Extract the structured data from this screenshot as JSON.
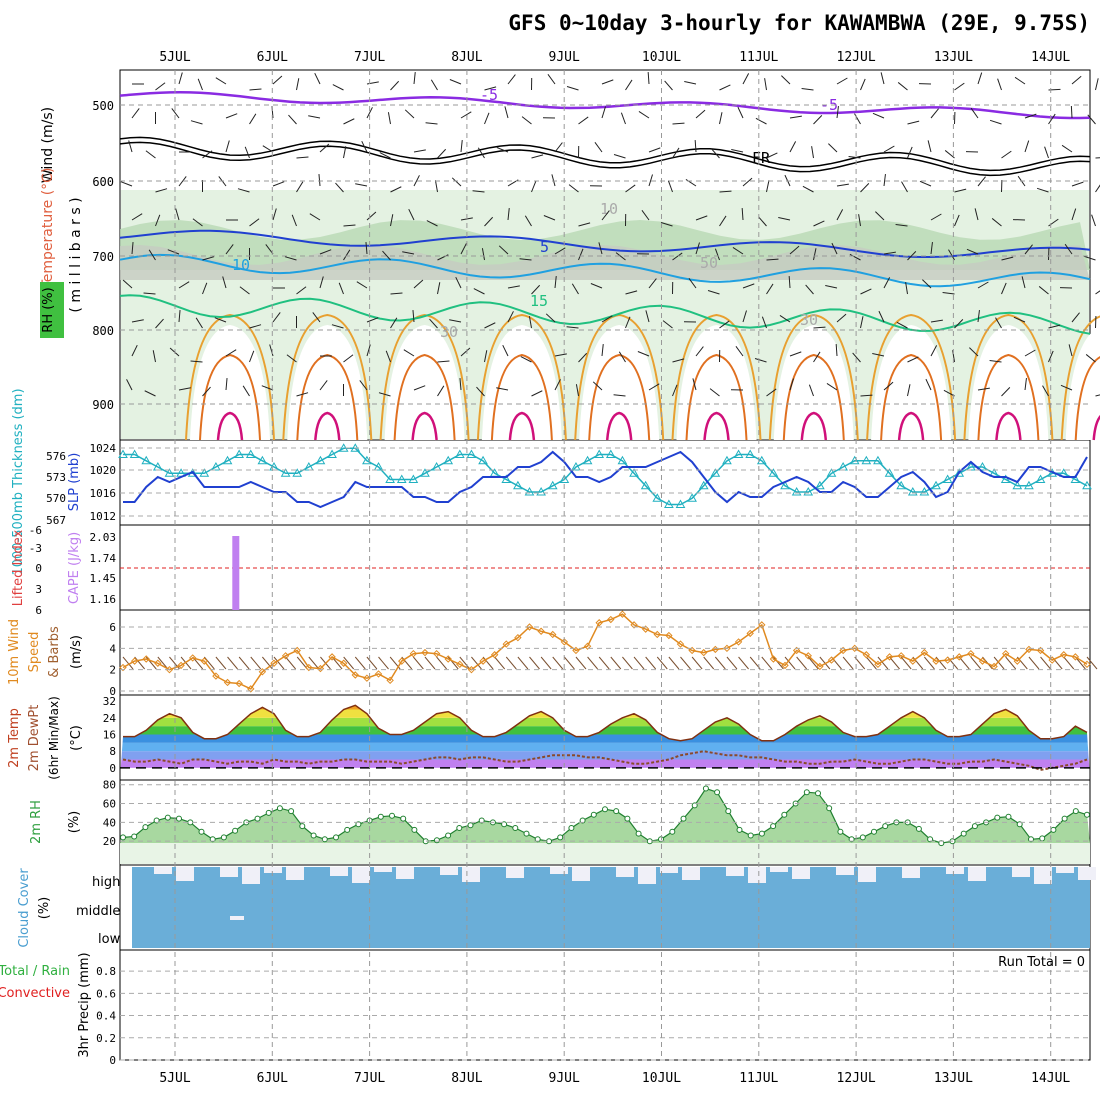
{
  "title": "GFS 0~10day 3-hourly for KAWAMBWA (29E, 9.75S)",
  "date_labels": [
    "5JUL",
    "6JUL",
    "7JUL",
    "8JUL",
    "9JUL",
    "10JUL",
    "11JUL",
    "12JUL",
    "13JUL",
    "14JUL"
  ],
  "run_total": "Run Total = 0",
  "colors": {
    "purple": "#8a2be2",
    "blue": "#2040d0",
    "cyan": "#20b0c0",
    "orange": "#e08a20",
    "green": "#30b040",
    "cloud": "#6aaed8",
    "red": "#e02020",
    "cape": "#c080f0"
  },
  "chart_data": [
    {
      "type": "contour",
      "panel": "upper-air",
      "ylabel_parts": [
        "Wind (m/s)",
        "Temperature (°C)",
        "RH (%)"
      ],
      "ylabel_units": "( m i l l i b a r s )",
      "y_ticks": [
        "500",
        "600",
        "700",
        "800",
        "900"
      ],
      "contour_labels": [
        "-5",
        "-5",
        "FR",
        "5",
        "10",
        "15",
        "30",
        "50",
        "30",
        "10"
      ]
    },
    {
      "type": "line",
      "panel": "slp-thickness",
      "ylabel_left": "1000-500mb Thickness (dm)",
      "ylabel_right": "SLP (mb)",
      "left_ticks": [
        "576",
        "573",
        "570",
        "567"
      ],
      "right_ticks": [
        "1024",
        "1020",
        "1016",
        "1012"
      ],
      "slp": [
        1013,
        1013,
        1016,
        1018,
        1017,
        1018,
        1019,
        1016,
        1016,
        1016,
        1016,
        1017,
        1016,
        1015,
        1015,
        1013,
        1013,
        1012,
        1013,
        1014,
        1017,
        1016,
        1016,
        1016,
        1016,
        1014,
        1014,
        1013,
        1013,
        1015,
        1016,
        1018,
        1018,
        1018,
        1020,
        1020,
        1021,
        1023,
        1021,
        1018,
        1018,
        1017,
        1018,
        1020,
        1020,
        1020,
        1021,
        1022,
        1023,
        1021,
        1018,
        1015,
        1013,
        1015,
        1014,
        1014,
        1016,
        1017,
        1018,
        1017,
        1015,
        1015,
        1017,
        1016,
        1014,
        1014,
        1016,
        1018,
        1019,
        1017,
        1014,
        1015,
        1019,
        1021,
        1019,
        1018,
        1018,
        1017,
        1020,
        1020,
        1019,
        1018,
        1018,
        1022
      ],
      "thickness": [
        576,
        576,
        575,
        574,
        573,
        573,
        573,
        573,
        574,
        575,
        576,
        576,
        575,
        574,
        573,
        573,
        574,
        575,
        576,
        577,
        577,
        575,
        574,
        572,
        572,
        572,
        573,
        574,
        575,
        576,
        576,
        575,
        573,
        572,
        571,
        570,
        570,
        571,
        572,
        574,
        575,
        576,
        576,
        575,
        573,
        571,
        569,
        568,
        568,
        569,
        571,
        573,
        575,
        576,
        576,
        575,
        573,
        571,
        570,
        570,
        571,
        573,
        574,
        575,
        575,
        575,
        573,
        571,
        570,
        570,
        571,
        572,
        573,
        574,
        574,
        573,
        572,
        571,
        571,
        572,
        573,
        573,
        572,
        571
      ]
    },
    {
      "type": "bar",
      "panel": "cape-lifted-index",
      "ylabel_left": "Lifted Index",
      "ylabel_right": "CAPE (J/kg)",
      "left_ticks": [
        "-3",
        "0",
        "3",
        "6",
        "-6"
      ],
      "right_ticks": [
        "2.03",
        "1.74",
        "1.45",
        "1.16"
      ],
      "cape_bar_day_offset": 1.0,
      "cape_value": 2.03
    },
    {
      "type": "line",
      "panel": "10m-wind",
      "ylabel_parts": [
        "10m Wind",
        "Speed",
        "& Barbs"
      ],
      "units": "(m/s)",
      "y_ticks": [
        "6",
        "4",
        "2",
        "0"
      ],
      "speed": [
        2.2,
        2.8,
        3.0,
        2.6,
        2.0,
        2.4,
        3.1,
        2.8,
        1.4,
        0.8,
        0.7,
        0.2,
        1.8,
        2.6,
        3.3,
        3.8,
        2.2,
        2.1,
        3.2,
        2.6,
        1.5,
        1.2,
        1.6,
        1.0,
        2.8,
        3.5,
        3.6,
        3.5,
        3.0,
        2.5,
        2.0,
        2.8,
        3.4,
        4.4,
        5.0,
        6.0,
        5.6,
        5.3,
        4.6,
        3.8,
        4.2,
        6.4,
        6.7,
        7.2,
        6.2,
        5.8,
        5.3,
        5.2,
        4.4,
        3.8,
        3.6,
        3.9,
        4.0,
        4.6,
        5.4,
        6.2,
        3.0,
        2.4,
        3.8,
        3.3,
        2.3,
        2.9,
        3.8,
        4.0,
        3.4,
        2.5,
        3.2,
        3.3,
        2.8,
        3.6,
        2.8,
        2.9,
        3.2,
        3.5,
        2.8,
        2.3,
        3.5,
        2.8,
        3.9,
        3.8,
        2.9,
        3.4,
        3.2,
        2.5
      ]
    },
    {
      "type": "area",
      "panel": "2m-temp",
      "ylabel_parts": [
        "2m Temp",
        "2m DewPt",
        "(6hr Min/Max)"
      ],
      "units": "(°C)",
      "y_ticks": [
        "32",
        "24",
        "16",
        "8",
        "0"
      ],
      "temp": [
        15,
        15,
        18,
        23,
        26,
        24,
        17,
        14,
        14,
        16,
        21,
        26,
        29,
        26,
        18,
        15,
        15,
        17,
        23,
        28,
        30,
        26,
        19,
        16,
        16,
        18,
        22,
        26,
        27,
        24,
        18,
        15,
        15,
        17,
        21,
        25,
        27,
        24,
        18,
        15,
        15,
        17,
        21,
        24,
        26,
        23,
        17,
        14,
        13,
        14,
        18,
        22,
        24,
        21,
        16,
        13,
        13,
        16,
        20,
        23,
        25,
        22,
        17,
        15,
        15,
        16,
        20,
        24,
        27,
        24,
        18,
        15,
        15,
        16,
        21,
        26,
        28,
        25,
        18,
        14,
        14,
        15,
        20,
        17
      ],
      "dewpoint": [
        4,
        3,
        3,
        4,
        3,
        2,
        4,
        4,
        3,
        2,
        3,
        3,
        2,
        4,
        3,
        3,
        2,
        3,
        3,
        4,
        4,
        3,
        3,
        3,
        2,
        3,
        4,
        5,
        5,
        4,
        5,
        5,
        4,
        3,
        3,
        4,
        5,
        6,
        6,
        6,
        5,
        5,
        4,
        3,
        2,
        2,
        3,
        4,
        6,
        7,
        8,
        7,
        6,
        6,
        5,
        5,
        4,
        3,
        3,
        2,
        2,
        3,
        3,
        4,
        3,
        2,
        2,
        3,
        4,
        4,
        3,
        2,
        2,
        3,
        3,
        4,
        3,
        2,
        1,
        -1,
        0,
        1,
        2,
        4
      ]
    },
    {
      "type": "area",
      "panel": "2m-rh",
      "ylabel": "2m RH",
      "units": "(%)",
      "y_ticks": [
        "80",
        "60",
        "40",
        "20"
      ],
      "rh": [
        24,
        25,
        35,
        42,
        45,
        44,
        40,
        30,
        22,
        24,
        31,
        40,
        44,
        50,
        55,
        52,
        36,
        26,
        22,
        24,
        32,
        38,
        42,
        46,
        47,
        44,
        32,
        20,
        21,
        26,
        34,
        37,
        42,
        40,
        38,
        34,
        28,
        22,
        20,
        24,
        34,
        42,
        48,
        54,
        52,
        44,
        28,
        20,
        22,
        30,
        44,
        58,
        76,
        72,
        52,
        32,
        26,
        28,
        36,
        48,
        60,
        72,
        71,
        55,
        30,
        22,
        24,
        30,
        36,
        40,
        40,
        33,
        22,
        18,
        20,
        28,
        36,
        40,
        45,
        46,
        38,
        22,
        23,
        32,
        44,
        52,
        48
      ]
    },
    {
      "type": "bar",
      "panel": "cloud-cover",
      "ylabel": "Cloud Cover",
      "units": "(%)",
      "row_labels": [
        "high",
        "middle",
        "low"
      ]
    },
    {
      "type": "bar",
      "panel": "precip",
      "ylabel_parts": [
        "Total / Rain",
        "Convective"
      ],
      "units": "3hr Precip (mm)",
      "y_ticks": [
        "0.8",
        "0.6",
        "0.4",
        "0.2",
        "0"
      ],
      "values": []
    }
  ]
}
